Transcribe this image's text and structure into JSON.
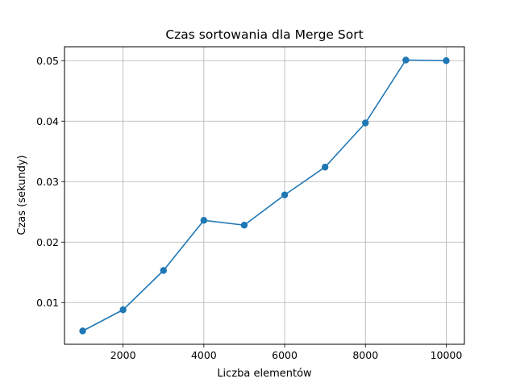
{
  "chart_data": {
    "type": "line",
    "title": "Czas sortowania dla Merge Sort",
    "xlabel": "Liczba elementów",
    "ylabel": "Czas (sekundy)",
    "x": [
      1000,
      2000,
      3000,
      4000,
      5000,
      6000,
      7000,
      8000,
      9000,
      10000
    ],
    "series": [
      {
        "values": [
          0.0053,
          0.0088,
          0.0153,
          0.0236,
          0.0228,
          0.0278,
          0.0324,
          0.0397,
          0.0501,
          0.05
        ],
        "color": "#1f77b4"
      }
    ],
    "xlim": [
      550,
      10450
    ],
    "ylim": [
      0.0031,
      0.0523
    ],
    "xticks": [
      2000,
      4000,
      6000,
      8000,
      10000
    ],
    "xtick_labels": [
      "2000",
      "4000",
      "6000",
      "8000",
      "10000"
    ],
    "yticks": [
      0.01,
      0.02,
      0.03,
      0.04,
      0.05
    ],
    "ytick_labels": [
      "0.01",
      "0.02",
      "0.03",
      "0.04",
      "0.05"
    ],
    "grid": true,
    "marker": "circle"
  }
}
